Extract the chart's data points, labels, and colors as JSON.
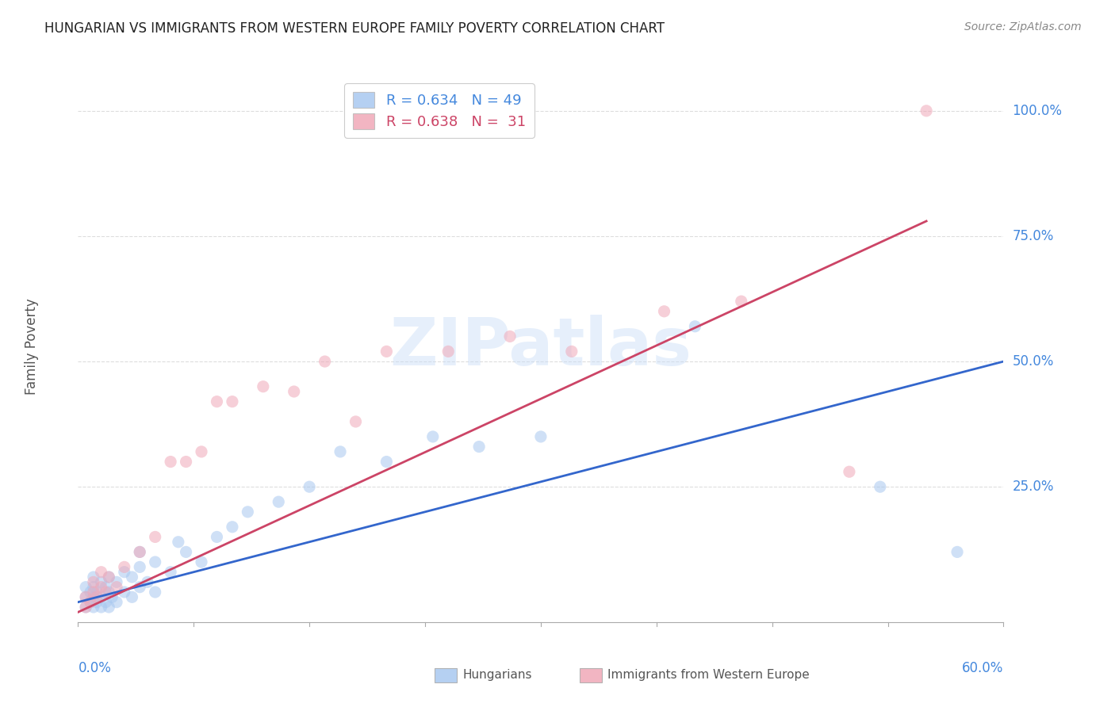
{
  "title": "HUNGARIAN VS IMMIGRANTS FROM WESTERN EUROPE FAMILY POVERTY CORRELATION CHART",
  "source": "Source: ZipAtlas.com",
  "ylabel": "Family Poverty",
  "ytick_labels": [
    "100.0%",
    "75.0%",
    "50.0%",
    "25.0%"
  ],
  "ytick_values": [
    1.0,
    0.75,
    0.5,
    0.25
  ],
  "xlim": [
    0.0,
    0.6
  ],
  "ylim": [
    -0.02,
    1.08
  ],
  "blue_color": "#a8c8f0",
  "pink_color": "#f0a8b8",
  "blue_line_color": "#3366cc",
  "pink_line_color": "#cc4466",
  "legend_blue_R": "0.634",
  "legend_blue_N": "49",
  "legend_pink_R": "0.638",
  "legend_pink_N": "31",
  "watermark_text": "ZIPatlas",
  "blue_scatter_x": [
    0.005,
    0.005,
    0.005,
    0.008,
    0.008,
    0.01,
    0.01,
    0.01,
    0.01,
    0.012,
    0.012,
    0.015,
    0.015,
    0.015,
    0.018,
    0.018,
    0.02,
    0.02,
    0.02,
    0.022,
    0.025,
    0.025,
    0.03,
    0.03,
    0.035,
    0.035,
    0.04,
    0.04,
    0.04,
    0.045,
    0.05,
    0.05,
    0.06,
    0.065,
    0.07,
    0.08,
    0.09,
    0.1,
    0.11,
    0.13,
    0.15,
    0.17,
    0.2,
    0.23,
    0.26,
    0.3,
    0.4,
    0.52,
    0.57
  ],
  "blue_scatter_y": [
    0.01,
    0.03,
    0.05,
    0.02,
    0.04,
    0.01,
    0.03,
    0.05,
    0.07,
    0.02,
    0.04,
    0.01,
    0.03,
    0.06,
    0.02,
    0.05,
    0.01,
    0.04,
    0.07,
    0.03,
    0.02,
    0.06,
    0.04,
    0.08,
    0.03,
    0.07,
    0.05,
    0.09,
    0.12,
    0.06,
    0.04,
    0.1,
    0.08,
    0.14,
    0.12,
    0.1,
    0.15,
    0.17,
    0.2,
    0.22,
    0.25,
    0.32,
    0.3,
    0.35,
    0.33,
    0.35,
    0.57,
    0.25,
    0.12
  ],
  "pink_scatter_x": [
    0.005,
    0.005,
    0.008,
    0.01,
    0.01,
    0.012,
    0.015,
    0.015,
    0.018,
    0.02,
    0.025,
    0.03,
    0.04,
    0.05,
    0.06,
    0.07,
    0.08,
    0.09,
    0.1,
    0.12,
    0.14,
    0.16,
    0.18,
    0.2,
    0.24,
    0.28,
    0.32,
    0.38,
    0.43,
    0.5,
    0.55
  ],
  "pink_scatter_y": [
    0.01,
    0.03,
    0.02,
    0.04,
    0.06,
    0.03,
    0.05,
    0.08,
    0.04,
    0.07,
    0.05,
    0.09,
    0.12,
    0.15,
    0.3,
    0.3,
    0.32,
    0.42,
    0.42,
    0.45,
    0.44,
    0.5,
    0.38,
    0.52,
    0.52,
    0.55,
    0.52,
    0.6,
    0.62,
    0.28,
    1.0
  ],
  "blue_line_x0": 0.0,
  "blue_line_y0": 0.02,
  "blue_line_x1": 0.6,
  "blue_line_y1": 0.5,
  "pink_line_x0": 0.0,
  "pink_line_y0": 0.0,
  "pink_line_x1": 0.55,
  "pink_line_y1": 0.78,
  "grid_color": "#dddddd",
  "axis_color": "#aaaaaa",
  "title_color": "#222222",
  "source_color": "#888888",
  "ylabel_color": "#555555",
  "ytick_color": "#4488dd",
  "xtick_color": "#4488dd",
  "legend_label_blue_color": "#4488dd",
  "legend_label_pink_color": "#cc4466",
  "bottom_legend_color": "#555555",
  "scatter_size": 120,
  "scatter_alpha": 0.55,
  "scatter_edge_width": 0.0
}
